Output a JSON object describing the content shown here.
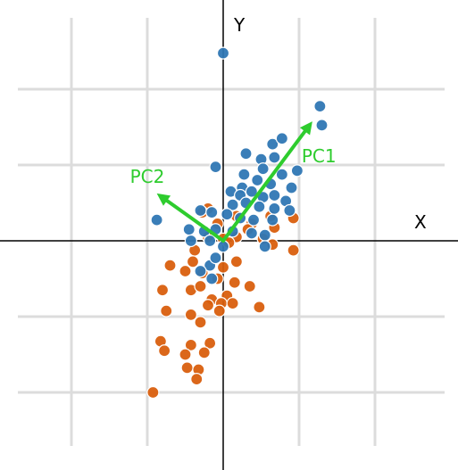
{
  "chart_data": {
    "type": "scatter",
    "title": "",
    "xlabel": "X",
    "ylabel": "Y",
    "xlim": [
      -5.9,
      5.9
    ],
    "ylim": [
      -5.9,
      5.9
    ],
    "grid": true,
    "colors": {
      "series_a": "#2f77b4",
      "series_b": "#d95f0e",
      "vectors": "#2ecc2e",
      "grid": "#dcdcdc",
      "axes": "#000000"
    },
    "vectors": [
      {
        "label": "PC1",
        "from": [
          0,
          0
        ],
        "to": [
          2.35,
          3.15
        ]
      },
      {
        "label": "PC2",
        "from": [
          0,
          0
        ],
        "to": [
          -1.75,
          1.25
        ]
      }
    ],
    "series": [
      {
        "values": [
          [
            0.0,
            4.95
          ],
          [
            2.55,
            3.55
          ],
          [
            2.6,
            3.05
          ],
          [
            1.3,
            2.55
          ],
          [
            1.55,
            2.7
          ],
          [
            -0.2,
            1.95
          ],
          [
            0.6,
            2.3
          ],
          [
            1.0,
            2.15
          ],
          [
            1.35,
            2.2
          ],
          [
            1.05,
            1.9
          ],
          [
            1.55,
            1.75
          ],
          [
            1.95,
            1.85
          ],
          [
            0.55,
            1.75
          ],
          [
            0.9,
            1.6
          ],
          [
            0.5,
            1.4
          ],
          [
            1.25,
            1.5
          ],
          [
            1.8,
            1.4
          ],
          [
            0.2,
            1.3
          ],
          [
            0.45,
            1.2
          ],
          [
            0.75,
            1.3
          ],
          [
            1.05,
            1.15
          ],
          [
            1.35,
            1.2
          ],
          [
            1.65,
            1.05
          ],
          [
            0.25,
            0.95
          ],
          [
            0.6,
            1.0
          ],
          [
            0.95,
            0.9
          ],
          [
            1.35,
            0.85
          ],
          [
            1.75,
            0.8
          ],
          [
            -0.6,
            0.8
          ],
          [
            -0.3,
            0.75
          ],
          [
            0.1,
            0.7
          ],
          [
            0.45,
            0.6
          ],
          [
            0.8,
            0.55
          ],
          [
            1.3,
            0.55
          ],
          [
            -1.75,
            0.55
          ],
          [
            -0.9,
            0.3
          ],
          [
            -0.5,
            0.25
          ],
          [
            -0.2,
            0.3
          ],
          [
            0.25,
            0.25
          ],
          [
            0.75,
            0.2
          ],
          [
            1.1,
            0.15
          ],
          [
            -0.85,
            0.0
          ],
          [
            -0.35,
            0.0
          ],
          [
            0.0,
            -0.15
          ],
          [
            1.1,
            -0.15
          ],
          [
            -0.35,
            -0.65
          ],
          [
            -0.6,
            -0.8
          ],
          [
            -0.3,
            -1.0
          ],
          [
            -0.2,
            -0.45
          ]
        ]
      },
      {
        "values": [
          [
            -0.4,
            0.85
          ],
          [
            -0.55,
            0.75
          ],
          [
            0.35,
            0.65
          ],
          [
            1.25,
            0.65
          ],
          [
            1.85,
            0.6
          ],
          [
            0.75,
            0.45
          ],
          [
            -0.15,
            0.45
          ],
          [
            0.65,
            0.3
          ],
          [
            1.35,
            0.35
          ],
          [
            0.35,
            0.1
          ],
          [
            1.05,
            0.05
          ],
          [
            -0.4,
            0.1
          ],
          [
            0.0,
            0.05
          ],
          [
            0.15,
            -0.05
          ],
          [
            1.3,
            -0.1
          ],
          [
            -0.75,
            -0.25
          ],
          [
            1.85,
            -0.25
          ],
          [
            -0.8,
            -0.55
          ],
          [
            -1.4,
            -0.65
          ],
          [
            -1.0,
            -0.8
          ],
          [
            -0.55,
            -0.85
          ],
          [
            0.0,
            -0.7
          ],
          [
            -1.6,
            -1.3
          ],
          [
            -0.85,
            -1.3
          ],
          [
            -0.6,
            -1.2
          ],
          [
            0.3,
            -1.1
          ],
          [
            0.7,
            -1.2
          ],
          [
            0.1,
            -1.45
          ],
          [
            -0.3,
            -1.55
          ],
          [
            -0.4,
            -1.7
          ],
          [
            -0.05,
            -1.65
          ],
          [
            0.25,
            -1.65
          ],
          [
            0.95,
            -1.75
          ],
          [
            -1.5,
            -1.85
          ],
          [
            -0.85,
            -1.95
          ],
          [
            -0.1,
            -1.85
          ],
          [
            -0.6,
            -2.15
          ],
          [
            -0.35,
            -2.7
          ],
          [
            -0.85,
            -2.75
          ],
          [
            -1.65,
            -2.65
          ],
          [
            -0.5,
            -2.95
          ],
          [
            -1.55,
            -2.9
          ],
          [
            -1.0,
            -3.0
          ],
          [
            -0.95,
            -3.35
          ],
          [
            -0.65,
            -3.4
          ],
          [
            -0.7,
            -3.65
          ],
          [
            -1.85,
            -4.0
          ],
          [
            -0.15,
            -1.0
          ],
          [
            0.35,
            -0.55
          ]
        ]
      }
    ]
  }
}
